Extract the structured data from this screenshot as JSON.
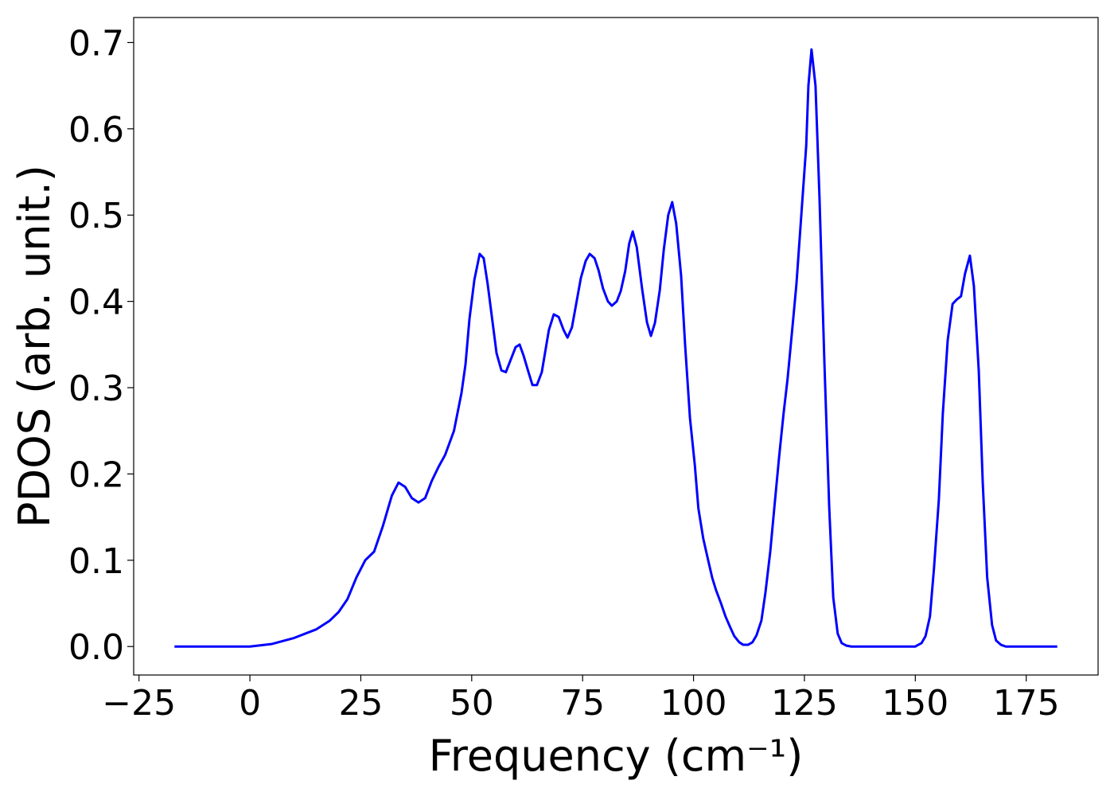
{
  "chart_data": {
    "type": "line",
    "xlabel": "Frequency (cm⁻¹)",
    "ylabel": "PDOS (arb. unit.)",
    "x": [
      -17,
      -10,
      -5,
      0,
      5,
      10,
      15,
      18,
      20,
      22,
      24,
      26,
      28,
      30,
      32,
      33.5,
      35,
      36.5,
      38,
      39.5,
      41,
      42.5,
      44,
      46,
      47.7,
      48.6,
      49.5,
      50.6,
      51.8,
      52.7,
      53.6,
      55.6,
      56.7,
      57.7,
      59.9,
      60.8,
      61.7,
      62.8,
      63.7,
      64.7,
      65.8,
      67.4,
      68.5,
      69.6,
      70.7,
      71.6,
      72.6,
      74.6,
      75.7,
      76.6,
      77.7,
      78.6,
      79.6,
      80.7,
      81.6,
      82.7,
      83.6,
      84.6,
      85.5,
      86.3,
      87.2,
      88.4,
      89.5,
      90.4,
      91.3,
      92.4,
      93.3,
      94.3,
      95.2,
      96.1,
      97.2,
      98.1,
      99.2,
      100.3,
      101.1,
      102.2,
      103.3,
      104.2,
      105.1,
      106.2,
      107.2,
      108.3,
      109.2,
      110.3,
      111.2,
      112.3,
      113.3,
      114.2,
      115.3,
      116.2,
      117.3,
      118.2,
      119.3,
      120.3,
      121.2,
      122.3,
      123.2,
      124.3,
      125.4,
      125.9,
      126.6,
      127.5,
      128.4,
      129.5,
      130.6,
      131.5,
      132.5,
      133.4,
      134.5,
      135.6,
      150,
      150.3,
      151.4,
      152.3,
      153.3,
      154.2,
      155.3,
      156.2,
      157.3,
      158.4,
      159.3,
      160.3,
      161.2,
      162.3,
      163.2,
      164.3,
      165.2,
      166.2,
      167.3,
      168.2,
      169.3,
      170.4,
      182
    ],
    "series": [
      {
        "color": "#0000ff",
        "values": [
          0,
          0,
          0,
          0,
          0.003,
          0.01,
          0.02,
          0.03,
          0.04,
          0.055,
          0.08,
          0.1,
          0.11,
          0.14,
          0.175,
          0.19,
          0.185,
          0.172,
          0.167,
          0.172,
          0.192,
          0.208,
          0.222,
          0.25,
          0.294,
          0.327,
          0.38,
          0.425,
          0.455,
          0.45,
          0.42,
          0.34,
          0.32,
          0.318,
          0.347,
          0.35,
          0.337,
          0.318,
          0.303,
          0.303,
          0.318,
          0.367,
          0.385,
          0.382,
          0.367,
          0.358,
          0.37,
          0.427,
          0.447,
          0.455,
          0.45,
          0.436,
          0.415,
          0.4,
          0.395,
          0.4,
          0.412,
          0.435,
          0.467,
          0.481,
          0.463,
          0.415,
          0.376,
          0.36,
          0.375,
          0.413,
          0.46,
          0.5,
          0.515,
          0.49,
          0.43,
          0.35,
          0.265,
          0.21,
          0.16,
          0.125,
          0.1,
          0.08,
          0.065,
          0.05,
          0.035,
          0.022,
          0.012,
          0.005,
          0.002,
          0.002,
          0.005,
          0.013,
          0.03,
          0.062,
          0.11,
          0.16,
          0.22,
          0.27,
          0.31,
          0.37,
          0.42,
          0.5,
          0.58,
          0.65,
          0.692,
          0.65,
          0.52,
          0.33,
          0.16,
          0.057,
          0.015,
          0.004,
          0.001,
          0,
          0,
          0.001,
          0.004,
          0.012,
          0.035,
          0.09,
          0.17,
          0.27,
          0.355,
          0.397,
          0.402,
          0.406,
          0.432,
          0.453,
          0.418,
          0.32,
          0.19,
          0.08,
          0.025,
          0.007,
          0.002,
          0,
          0
        ]
      }
    ],
    "xlim": [
      -26.2,
      191.2
    ],
    "xticks": [
      {
        "value": -25,
        "label": "−25"
      },
      0,
      25,
      50,
      75,
      100,
      125,
      150,
      175
    ],
    "ylim": [
      -0.033,
      0.729
    ],
    "yticks": [
      {
        "value": 0,
        "label": "0.0"
      },
      0.1,
      0.2,
      0.3,
      0.4,
      0.5,
      0.6,
      0.7
    ]
  }
}
